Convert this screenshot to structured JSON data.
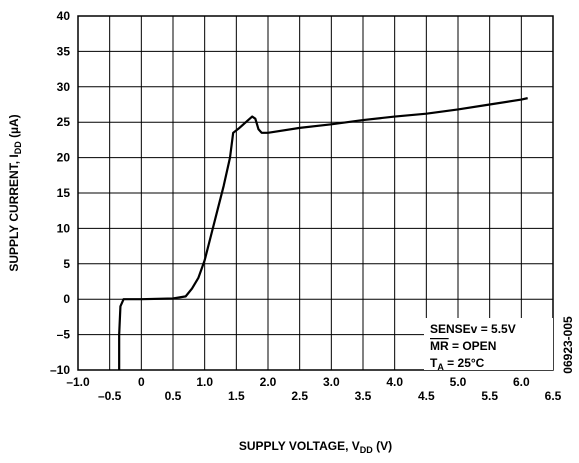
{
  "chart_data": {
    "type": "line",
    "x_label": {
      "text": "SUPPLY VOLTAGE, V",
      "sub": "DD",
      "tail": " (V)"
    },
    "y_label": {
      "text": "SUPPLY CURRENT, I",
      "sub": "DD",
      "tail": " (µA)"
    },
    "x": [
      -0.35,
      -0.35,
      -0.33,
      -0.28,
      0,
      0.5,
      0.7,
      0.8,
      0.9,
      1.0,
      1.1,
      1.2,
      1.3,
      1.4,
      1.45,
      1.55,
      1.65,
      1.75,
      1.8,
      1.85,
      1.9,
      2.0,
      2.5,
      3.0,
      3.5,
      4.0,
      4.5,
      5.0,
      5.5,
      6.0,
      6.1
    ],
    "series": [
      {
        "name": "IDD",
        "color": "#000000",
        "values": [
          -10,
          -5,
          -1,
          0,
          0,
          0.1,
          0.4,
          1.5,
          3,
          5.5,
          9,
          12.5,
          16,
          20,
          23.5,
          24.2,
          25,
          25.8,
          25.5,
          24,
          23.5,
          23.5,
          24.2,
          24.7,
          25.3,
          25.8,
          26.2,
          26.8,
          27.5,
          28.2,
          28.4
        ]
      }
    ],
    "xlim": [
      -1.0,
      6.5
    ],
    "xticks": [
      {
        "value": -1.0,
        "label": "–1.0"
      },
      {
        "value": -0.5,
        "label": "–0.5"
      },
      0,
      0.5,
      {
        "value": 1.0,
        "label": "1.0"
      },
      1.5,
      {
        "value": 2.0,
        "label": "2.0"
      },
      2.5,
      {
        "value": 3.0,
        "label": "3.0"
      },
      3.5,
      {
        "value": 4.0,
        "label": "4.0"
      },
      4.5,
      {
        "value": 5.0,
        "label": "5.0"
      },
      5.5,
      {
        "value": 6.0,
        "label": "6.0"
      },
      6.5
    ],
    "ylim": [
      -10,
      40
    ],
    "yticks": [
      {
        "value": -10,
        "label": "–10"
      },
      {
        "value": -5,
        "label": "–5"
      },
      0,
      5,
      10,
      15,
      20,
      25,
      30,
      35,
      40
    ],
    "grid": true,
    "annotations": {
      "sense": "SENSEv = 5.5V",
      "mr": {
        "over": "MR",
        "tail": " = OPEN"
      },
      "ta": {
        "text": "T",
        "sub": "A",
        "tail": " = 25°C"
      }
    },
    "figure_id": "06923-005"
  }
}
